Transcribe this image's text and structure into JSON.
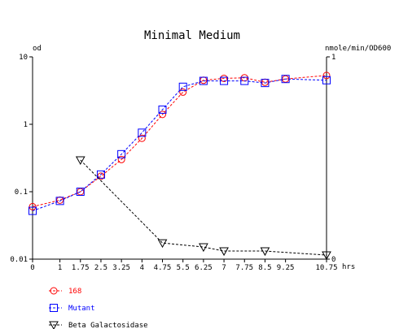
{
  "chart_data": {
    "type": "line",
    "title": "Minimal Medium",
    "left_axis_label": "od",
    "right_axis_label": "nmole/min/OD600",
    "x_unit_label": "hrs",
    "x_ticks": [
      "0",
      "1",
      "1.75",
      "2.5",
      "3.25",
      "4",
      "4.75",
      "5.5",
      "6.25",
      "7",
      "7.75",
      "8.5",
      "9.25",
      "10.75"
    ],
    "x_tick_values": [
      0,
      1,
      1.75,
      2.5,
      3.25,
      4,
      4.75,
      5.5,
      6.25,
      7,
      7.75,
      8.5,
      9.25,
      10.75
    ],
    "y_left_ticks": [
      "10",
      "1",
      "0.1",
      "0.01"
    ],
    "y_left_tick_values": [
      10,
      1,
      0.1,
      0.01
    ],
    "y_left_scale": "log",
    "y_left_range": [
      0.01,
      10
    ],
    "y_right_ticks": [
      "1",
      "0"
    ],
    "y_right_tick_values": [
      1,
      0
    ],
    "y_right_range": [
      0,
      1
    ],
    "grid": false,
    "legend_position": "bottom-left",
    "series": [
      {
        "name": "168",
        "axis": "left",
        "color": "#ff0000",
        "marker": "circle",
        "x": [
          0,
          1,
          1.75,
          2.5,
          3.25,
          4,
          4.75,
          5.5,
          6.25,
          7,
          7.75,
          8.5,
          9.25,
          10.75
        ],
        "y": [
          0.06,
          0.075,
          0.1,
          0.17,
          0.3,
          0.62,
          1.4,
          3.0,
          4.5,
          4.8,
          4.9,
          4.2,
          4.7,
          5.3
        ]
      },
      {
        "name": "Mutant",
        "axis": "left",
        "color": "#0000ff",
        "marker": "square",
        "x": [
          0,
          1,
          1.75,
          2.5,
          3.25,
          4,
          4.75,
          5.5,
          6.25,
          7,
          7.75,
          8.5,
          9.25,
          10.75
        ],
        "y": [
          0.052,
          0.073,
          0.1,
          0.18,
          0.36,
          0.75,
          1.65,
          3.6,
          4.4,
          4.4,
          4.4,
          4.1,
          4.7,
          4.5
        ]
      },
      {
        "name": "Beta Galactosidase",
        "axis": "right",
        "color": "#000000",
        "marker": "triangle-down",
        "x": [
          1.75,
          4.75,
          6.25,
          7,
          8.5,
          10.75
        ],
        "y": [
          0.49,
          0.08,
          0.06,
          0.04,
          0.04,
          0.02
        ]
      }
    ]
  }
}
